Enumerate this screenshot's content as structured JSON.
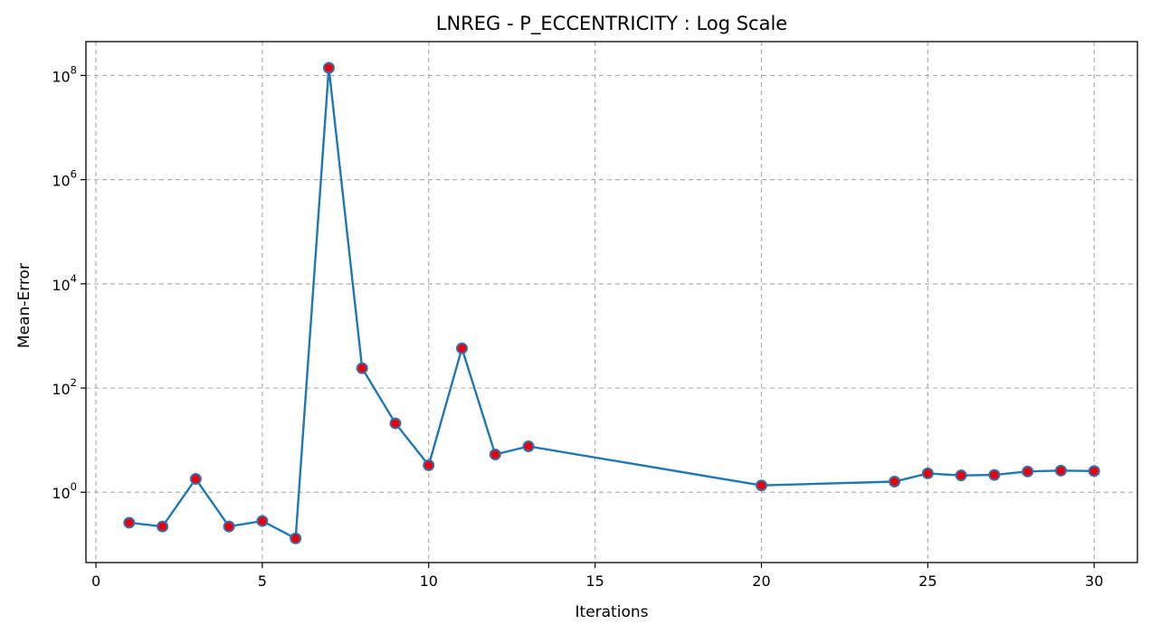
{
  "chart_data": {
    "type": "line",
    "title": "LNREG - P_ECCENTRICITY : Log Scale",
    "xlabel": "Iterations",
    "ylabel": "Mean-Error",
    "yscale": "log",
    "grid": true,
    "xlim": [
      -0.3,
      31.3
    ],
    "ylim_log10": [
      -1.35,
      8.65
    ],
    "xticks": [
      0,
      5,
      10,
      15,
      20,
      25,
      30
    ],
    "yticks": [
      {
        "base": "10",
        "exp": "0",
        "value": 1
      },
      {
        "base": "10",
        "exp": "2",
        "value": 100
      },
      {
        "base": "10",
        "exp": "4",
        "value": 10000
      },
      {
        "base": "10",
        "exp": "6",
        "value": 1000000
      },
      {
        "base": "10",
        "exp": "8",
        "value": 100000000
      }
    ],
    "series": [
      {
        "line_color": "#1f77b4",
        "marker_color": "#e8000b",
        "x": [
          1,
          2,
          3,
          4,
          5,
          6,
          7,
          8,
          9,
          10,
          11,
          12,
          13,
          20,
          24,
          25,
          26,
          27,
          28,
          29,
          30
        ],
        "y": [
          0.26,
          0.22,
          1.8,
          0.22,
          0.28,
          0.13,
          140000000,
          240,
          21,
          3.3,
          580,
          5.3,
          7.6,
          1.35,
          1.6,
          2.3,
          2.1,
          2.15,
          2.5,
          2.6,
          2.55
        ]
      }
    ]
  }
}
